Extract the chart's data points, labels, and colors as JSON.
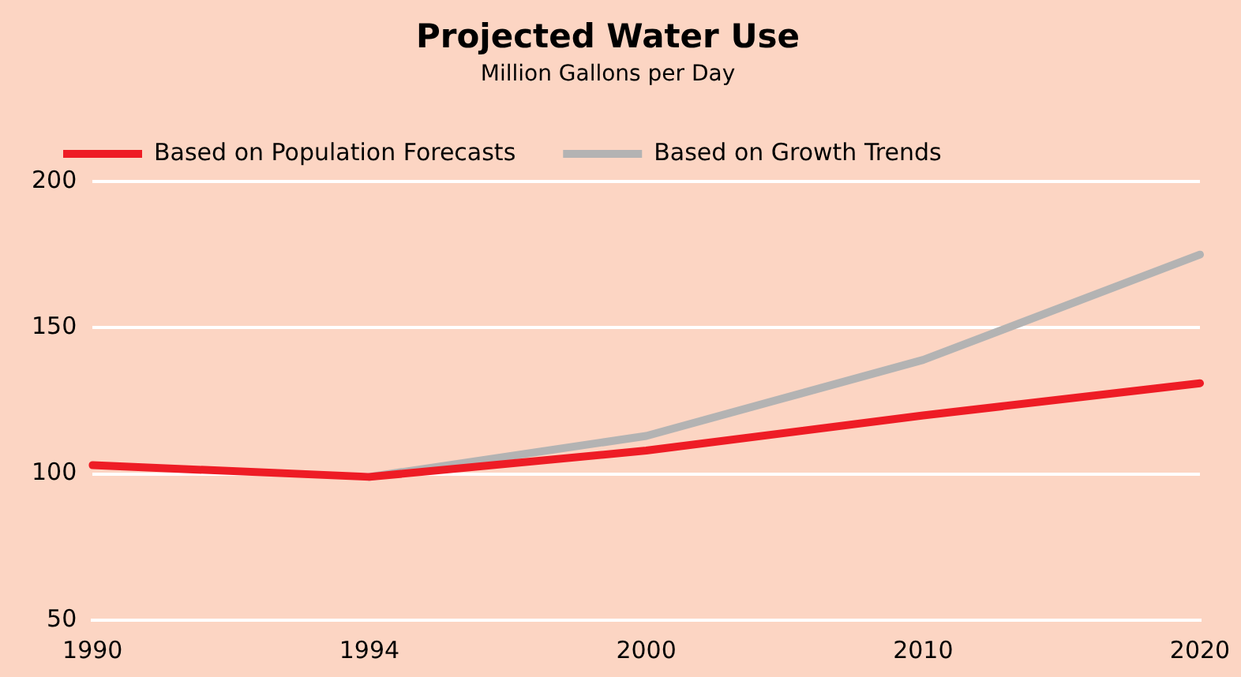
{
  "chart_data": {
    "type": "line",
    "title": "Projected Water Use",
    "subtitle": "Million Gallons per Day",
    "categories": [
      "1990",
      "1994",
      "2000",
      "2010",
      "2020"
    ],
    "series": [
      {
        "name": "Based on Population Forecasts",
        "color": "#ee1c25",
        "values": [
          103,
          99,
          108,
          120,
          131
        ]
      },
      {
        "name": "Based on Growth Trends",
        "color": "#b3b3b3",
        "values": [
          null,
          99,
          113,
          139,
          175
        ]
      }
    ],
    "ylim": [
      50,
      200
    ],
    "yticks": [
      50,
      100,
      150,
      200
    ],
    "grid": "y",
    "legend": "top",
    "marker": "none"
  }
}
